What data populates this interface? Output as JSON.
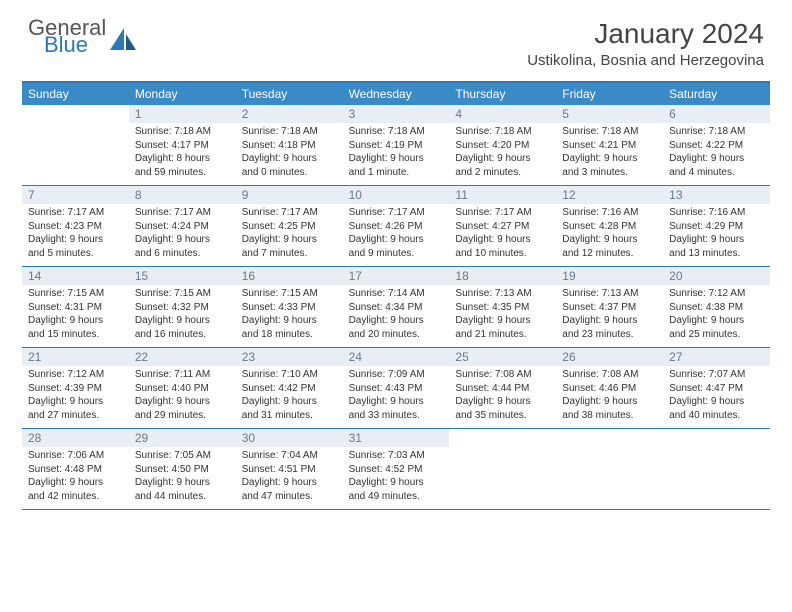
{
  "logo": {
    "line1": "General",
    "line2": "Blue"
  },
  "title": "January 2024",
  "location": "Ustikolina, Bosnia and Herzegovina",
  "colors": {
    "accent": "#3a8ac8",
    "border": "#2a7ab9",
    "daynum_bg": "#e8eef3"
  },
  "day_headers": [
    "Sunday",
    "Monday",
    "Tuesday",
    "Wednesday",
    "Thursday",
    "Friday",
    "Saturday"
  ],
  "weeks": [
    [
      {
        "n": "",
        "sr": "",
        "ss": "",
        "dl1": "",
        "dl2": "",
        "empty": true
      },
      {
        "n": "1",
        "sr": "Sunrise: 7:18 AM",
        "ss": "Sunset: 4:17 PM",
        "dl1": "Daylight: 8 hours",
        "dl2": "and 59 minutes."
      },
      {
        "n": "2",
        "sr": "Sunrise: 7:18 AM",
        "ss": "Sunset: 4:18 PM",
        "dl1": "Daylight: 9 hours",
        "dl2": "and 0 minutes."
      },
      {
        "n": "3",
        "sr": "Sunrise: 7:18 AM",
        "ss": "Sunset: 4:19 PM",
        "dl1": "Daylight: 9 hours",
        "dl2": "and 1 minute."
      },
      {
        "n": "4",
        "sr": "Sunrise: 7:18 AM",
        "ss": "Sunset: 4:20 PM",
        "dl1": "Daylight: 9 hours",
        "dl2": "and 2 minutes."
      },
      {
        "n": "5",
        "sr": "Sunrise: 7:18 AM",
        "ss": "Sunset: 4:21 PM",
        "dl1": "Daylight: 9 hours",
        "dl2": "and 3 minutes."
      },
      {
        "n": "6",
        "sr": "Sunrise: 7:18 AM",
        "ss": "Sunset: 4:22 PM",
        "dl1": "Daylight: 9 hours",
        "dl2": "and 4 minutes."
      }
    ],
    [
      {
        "n": "7",
        "sr": "Sunrise: 7:17 AM",
        "ss": "Sunset: 4:23 PM",
        "dl1": "Daylight: 9 hours",
        "dl2": "and 5 minutes."
      },
      {
        "n": "8",
        "sr": "Sunrise: 7:17 AM",
        "ss": "Sunset: 4:24 PM",
        "dl1": "Daylight: 9 hours",
        "dl2": "and 6 minutes."
      },
      {
        "n": "9",
        "sr": "Sunrise: 7:17 AM",
        "ss": "Sunset: 4:25 PM",
        "dl1": "Daylight: 9 hours",
        "dl2": "and 7 minutes."
      },
      {
        "n": "10",
        "sr": "Sunrise: 7:17 AM",
        "ss": "Sunset: 4:26 PM",
        "dl1": "Daylight: 9 hours",
        "dl2": "and 9 minutes."
      },
      {
        "n": "11",
        "sr": "Sunrise: 7:17 AM",
        "ss": "Sunset: 4:27 PM",
        "dl1": "Daylight: 9 hours",
        "dl2": "and 10 minutes."
      },
      {
        "n": "12",
        "sr": "Sunrise: 7:16 AM",
        "ss": "Sunset: 4:28 PM",
        "dl1": "Daylight: 9 hours",
        "dl2": "and 12 minutes."
      },
      {
        "n": "13",
        "sr": "Sunrise: 7:16 AM",
        "ss": "Sunset: 4:29 PM",
        "dl1": "Daylight: 9 hours",
        "dl2": "and 13 minutes."
      }
    ],
    [
      {
        "n": "14",
        "sr": "Sunrise: 7:15 AM",
        "ss": "Sunset: 4:31 PM",
        "dl1": "Daylight: 9 hours",
        "dl2": "and 15 minutes."
      },
      {
        "n": "15",
        "sr": "Sunrise: 7:15 AM",
        "ss": "Sunset: 4:32 PM",
        "dl1": "Daylight: 9 hours",
        "dl2": "and 16 minutes."
      },
      {
        "n": "16",
        "sr": "Sunrise: 7:15 AM",
        "ss": "Sunset: 4:33 PM",
        "dl1": "Daylight: 9 hours",
        "dl2": "and 18 minutes."
      },
      {
        "n": "17",
        "sr": "Sunrise: 7:14 AM",
        "ss": "Sunset: 4:34 PM",
        "dl1": "Daylight: 9 hours",
        "dl2": "and 20 minutes."
      },
      {
        "n": "18",
        "sr": "Sunrise: 7:13 AM",
        "ss": "Sunset: 4:35 PM",
        "dl1": "Daylight: 9 hours",
        "dl2": "and 21 minutes."
      },
      {
        "n": "19",
        "sr": "Sunrise: 7:13 AM",
        "ss": "Sunset: 4:37 PM",
        "dl1": "Daylight: 9 hours",
        "dl2": "and 23 minutes."
      },
      {
        "n": "20",
        "sr": "Sunrise: 7:12 AM",
        "ss": "Sunset: 4:38 PM",
        "dl1": "Daylight: 9 hours",
        "dl2": "and 25 minutes."
      }
    ],
    [
      {
        "n": "21",
        "sr": "Sunrise: 7:12 AM",
        "ss": "Sunset: 4:39 PM",
        "dl1": "Daylight: 9 hours",
        "dl2": "and 27 minutes."
      },
      {
        "n": "22",
        "sr": "Sunrise: 7:11 AM",
        "ss": "Sunset: 4:40 PM",
        "dl1": "Daylight: 9 hours",
        "dl2": "and 29 minutes."
      },
      {
        "n": "23",
        "sr": "Sunrise: 7:10 AM",
        "ss": "Sunset: 4:42 PM",
        "dl1": "Daylight: 9 hours",
        "dl2": "and 31 minutes."
      },
      {
        "n": "24",
        "sr": "Sunrise: 7:09 AM",
        "ss": "Sunset: 4:43 PM",
        "dl1": "Daylight: 9 hours",
        "dl2": "and 33 minutes."
      },
      {
        "n": "25",
        "sr": "Sunrise: 7:08 AM",
        "ss": "Sunset: 4:44 PM",
        "dl1": "Daylight: 9 hours",
        "dl2": "and 35 minutes."
      },
      {
        "n": "26",
        "sr": "Sunrise: 7:08 AM",
        "ss": "Sunset: 4:46 PM",
        "dl1": "Daylight: 9 hours",
        "dl2": "and 38 minutes."
      },
      {
        "n": "27",
        "sr": "Sunrise: 7:07 AM",
        "ss": "Sunset: 4:47 PM",
        "dl1": "Daylight: 9 hours",
        "dl2": "and 40 minutes."
      }
    ],
    [
      {
        "n": "28",
        "sr": "Sunrise: 7:06 AM",
        "ss": "Sunset: 4:48 PM",
        "dl1": "Daylight: 9 hours",
        "dl2": "and 42 minutes."
      },
      {
        "n": "29",
        "sr": "Sunrise: 7:05 AM",
        "ss": "Sunset: 4:50 PM",
        "dl1": "Daylight: 9 hours",
        "dl2": "and 44 minutes."
      },
      {
        "n": "30",
        "sr": "Sunrise: 7:04 AM",
        "ss": "Sunset: 4:51 PM",
        "dl1": "Daylight: 9 hours",
        "dl2": "and 47 minutes."
      },
      {
        "n": "31",
        "sr": "Sunrise: 7:03 AM",
        "ss": "Sunset: 4:52 PM",
        "dl1": "Daylight: 9 hours",
        "dl2": "and 49 minutes."
      },
      {
        "n": "",
        "sr": "",
        "ss": "",
        "dl1": "",
        "dl2": "",
        "empty": true
      },
      {
        "n": "",
        "sr": "",
        "ss": "",
        "dl1": "",
        "dl2": "",
        "empty": true
      },
      {
        "n": "",
        "sr": "",
        "ss": "",
        "dl1": "",
        "dl2": "",
        "empty": true
      }
    ]
  ]
}
